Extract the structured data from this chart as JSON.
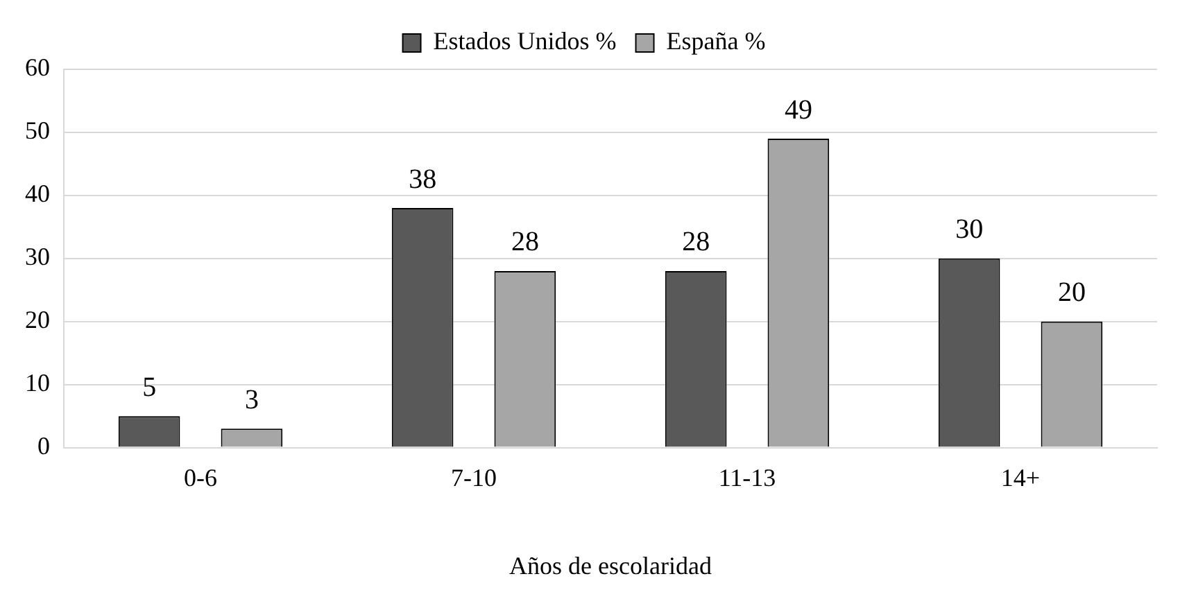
{
  "chart_data": {
    "type": "bar",
    "xlabel": "Años de escolaridad",
    "categories": [
      "0-6",
      "7-10",
      "11-13",
      "14+"
    ],
    "series": [
      {
        "name": "Estados Unidos %",
        "color": "#595959",
        "values": [
          5,
          38,
          28,
          30
        ]
      },
      {
        "name": "España %",
        "color": "#a6a6a6",
        "values": [
          3,
          28,
          49,
          20
        ]
      }
    ],
    "ylim": [
      0,
      60
    ],
    "yticks": [
      0,
      10,
      20,
      30,
      40,
      50,
      60
    ],
    "grid": "y",
    "legend": "top",
    "data_labels": true
  }
}
